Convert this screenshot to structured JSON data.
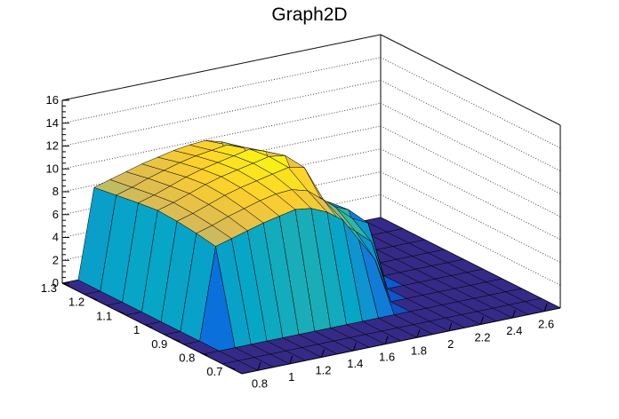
{
  "chart_data": {
    "type": "surface",
    "title": "Graph2D",
    "xlabel": "",
    "ylabel": "",
    "zlabel": "",
    "xlim": [
      0.7,
      2.7
    ],
    "ylim": [
      0.65,
      1.3
    ],
    "zlim": [
      0,
      16
    ],
    "x_ticks": [
      "0.8",
      "1",
      "1.2",
      "1.4",
      "1.6",
      "1.8",
      "2",
      "2.2",
      "2.4",
      "2.6"
    ],
    "y_ticks": [
      "0.7",
      "0.8",
      "0.9",
      "1",
      "1.1",
      "1.2",
      "1.3"
    ],
    "z_ticks": [
      "0",
      "2",
      "4",
      "6",
      "8",
      "10",
      "12",
      "14",
      "16"
    ],
    "x_grid": [
      0.7,
      0.8,
      0.9,
      1.0,
      1.1,
      1.2,
      1.3,
      1.4,
      1.5,
      1.6,
      1.7,
      1.8,
      1.9,
      2.0,
      2.1,
      2.2,
      2.3,
      2.4,
      2.5,
      2.6,
      2.7
    ],
    "y_grid": [
      0.65,
      0.72,
      0.79,
      0.86,
      0.93,
      1.0,
      1.07,
      1.14,
      1.22,
      1.3
    ],
    "z": [
      [
        0.0,
        0.0,
        0.0,
        0.0,
        0.0,
        0.0,
        0.0,
        0.0,
        0.0,
        0.0,
        0.0,
        0.0,
        0.0,
        0.0,
        0.0,
        0.0,
        0.0,
        0.0,
        0.0,
        0.0,
        0.0
      ],
      [
        0.0,
        0.0,
        0.0,
        0.0,
        0.0,
        0.0,
        0.0,
        0.0,
        0.0,
        0.0,
        0.0,
        0.0,
        0.0,
        0.0,
        0.0,
        0.0,
        0.0,
        0.0,
        0.0,
        0.0,
        0.0
      ],
      [
        0.0,
        0.0,
        0.0,
        0.0,
        0.0,
        0.0,
        0.0,
        0.0,
        0.0,
        0.0,
        0.0,
        0.0,
        0.0,
        0.0,
        0.0,
        0.0,
        0.0,
        0.0,
        0.0,
        0.0,
        0.0
      ],
      [
        0.0,
        0.0,
        8.0,
        8.4,
        8.8,
        9.2,
        9.5,
        9.8,
        9.6,
        9.0,
        8.0,
        6.0,
        4.0,
        0.0,
        0.0,
        0.0,
        0.0,
        0.0,
        0.0,
        0.0,
        0.0
      ],
      [
        0.0,
        0.0,
        8.3,
        8.7,
        9.2,
        9.6,
        10.0,
        10.3,
        10.4,
        10.0,
        8.9,
        6.8,
        5.6,
        4.4,
        0.0,
        0.0,
        0.0,
        0.0,
        0.0,
        0.0,
        0.0
      ],
      [
        0.0,
        0.0,
        8.5,
        8.9,
        9.4,
        9.9,
        10.3,
        10.6,
        10.9,
        11.2,
        10.9,
        8.0,
        6.8,
        5.6,
        4.9,
        0.0,
        0.0,
        0.0,
        0.0,
        0.0,
        0.0
      ],
      [
        0.0,
        0.0,
        8.6,
        9.0,
        9.5,
        10.0,
        10.4,
        10.7,
        11.0,
        11.3,
        11.1,
        7.4,
        6.5,
        5.8,
        5.2,
        0.0,
        0.0,
        0.0,
        0.0,
        0.0,
        0.0
      ],
      [
        0.0,
        0.0,
        8.4,
        8.8,
        9.3,
        9.8,
        10.2,
        10.5,
        10.8,
        11.1,
        10.6,
        7.0,
        6.0,
        5.4,
        5.0,
        0.0,
        0.0,
        0.0,
        0.0,
        0.0,
        0.0
      ],
      [
        0.0,
        0.0,
        8.1,
        8.5,
        9.0,
        9.4,
        9.8,
        10.1,
        10.3,
        10.5,
        10.0,
        6.6,
        5.6,
        5.0,
        4.6,
        0.0,
        0.0,
        0.0,
        0.0,
        0.0,
        0.0
      ],
      [
        0.0,
        0.0,
        7.8,
        8.2,
        8.6,
        9.0,
        9.3,
        9.6,
        9.8,
        9.9,
        9.5,
        6.2,
        5.2,
        4.6,
        4.2,
        0.0,
        0.0,
        0.0,
        0.0,
        0.0,
        0.0
      ]
    ],
    "grid": "dotted",
    "palette": [
      "#352a87",
      "#0363e1",
      "#1485d4",
      "#06a7c6",
      "#38b99e",
      "#92bf73",
      "#d9ba56",
      "#fcce2e",
      "#f9fb0e"
    ]
  }
}
